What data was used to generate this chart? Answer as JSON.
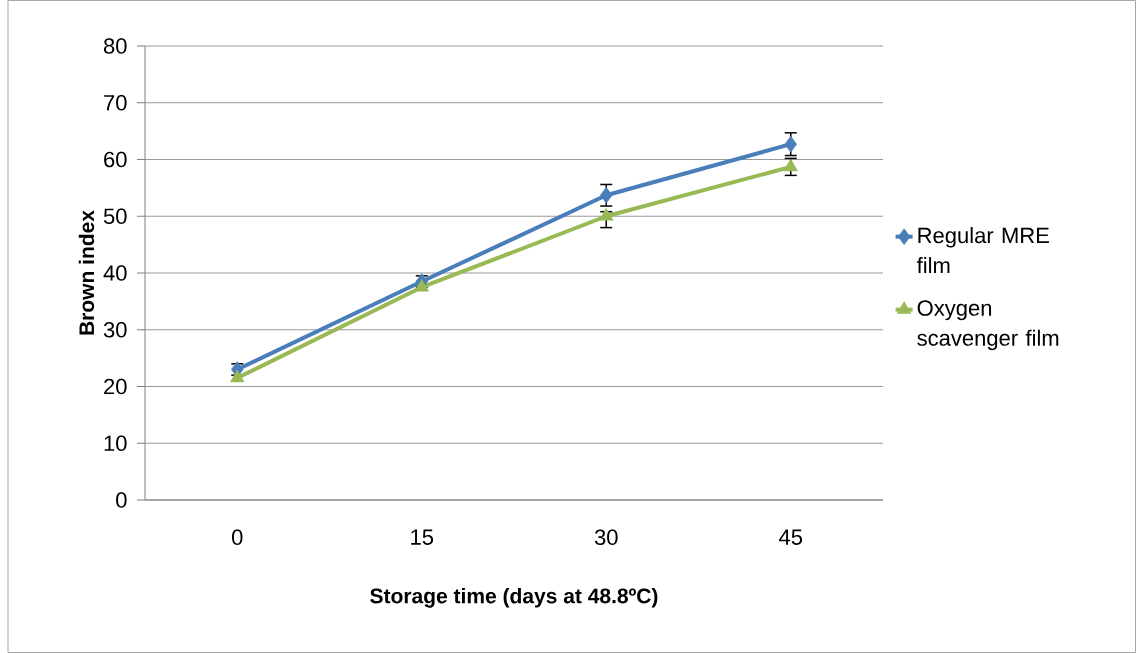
{
  "chart_data": {
    "type": "line",
    "xlabel": "Storage time (days at 48.8ºC)",
    "ylabel": "Brown index",
    "categories": [
      "0",
      "15",
      "30",
      "45"
    ],
    "series": [
      {
        "name": "Regular MRE film",
        "color": "#4a7ebb",
        "marker": "diamond",
        "values": [
          23,
          38.5,
          53.7,
          62.7
        ],
        "errors": [
          1,
          1,
          [
            51.8,
            55.6
          ],
          2
        ]
      },
      {
        "name": "Oxygen scavenger film",
        "color": "#98b954",
        "marker": "triangle",
        "values": [
          21.5,
          37.5,
          50,
          58.7
        ],
        "errors": [
          null,
          null,
          [
            48,
            50.8
          ],
          1.5
        ]
      }
    ],
    "ylim": [
      0,
      80
    ],
    "yticks": [
      0,
      10,
      20,
      30,
      40,
      50,
      60,
      70,
      80
    ],
    "grid": "y",
    "legend": "right"
  }
}
